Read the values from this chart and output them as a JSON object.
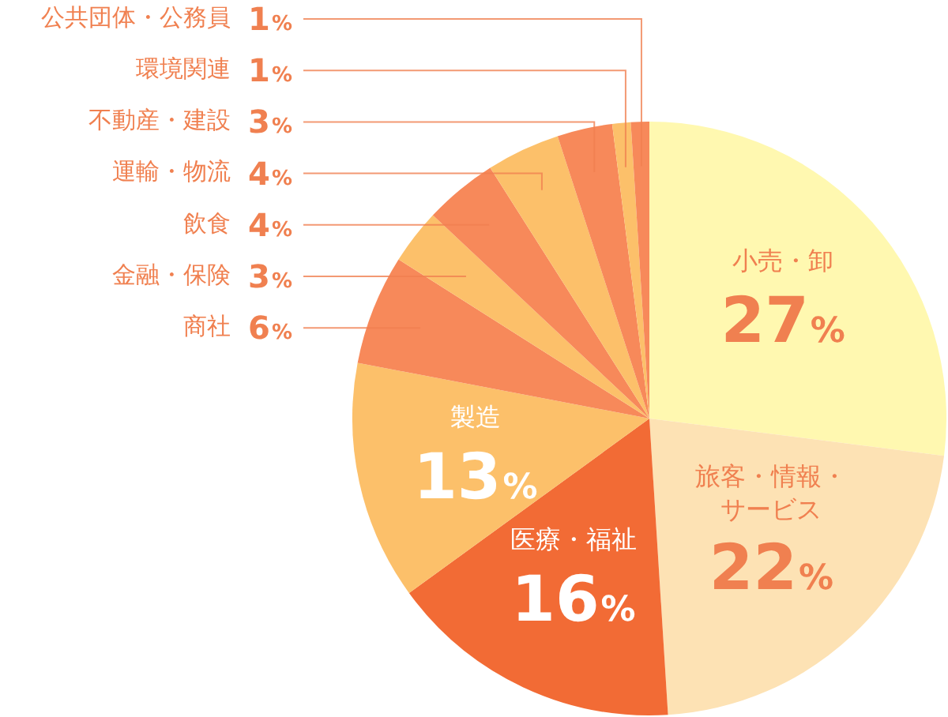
{
  "chart_data": {
    "type": "pie",
    "categories": [
      "小売・卸",
      "旅客・情報・サービス",
      "医療・福祉",
      "製造",
      "商社",
      "金融・保険",
      "飲食",
      "運輸・物流",
      "不動産・建設",
      "環境関連",
      "公共団体・公務員"
    ],
    "values": [
      27,
      22,
      16,
      13,
      6,
      3,
      4,
      4,
      3,
      1,
      1
    ],
    "colors": [
      "#fff8b0",
      "#fde2b4",
      "#f26b35",
      "#fcc06a",
      "#f7895a",
      "#fcc06a",
      "#f7895a",
      "#fcc06a",
      "#f7895a",
      "#fcc06a",
      "#f7895a"
    ],
    "value_labels": [
      "27%",
      "22%",
      "16%",
      "13%",
      "6%",
      "3%",
      "4%",
      "4%",
      "3%",
      "1%",
      "1%"
    ],
    "legend": false
  }
}
